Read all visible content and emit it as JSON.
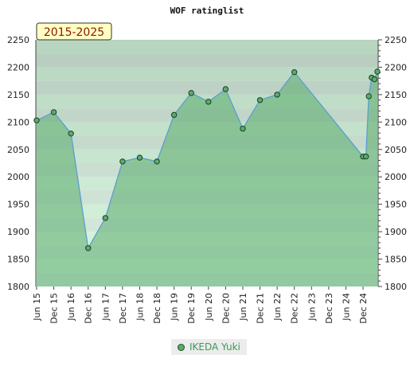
{
  "chart_data": {
    "type": "area",
    "title": "WOF ratinglist",
    "period_label": "2015-2025",
    "x_ticks": [
      "Jun 15",
      "Dec 15",
      "Jun 16",
      "Dec 16",
      "Jun 17",
      "Dec 17",
      "Jun 18",
      "Dec 18",
      "Jun 19",
      "Dec 19",
      "Jun 20",
      "Dec 20",
      "Jun 21",
      "Dec 21",
      "Jun 22",
      "Dec 22",
      "Jun 23",
      "Dec 23",
      "Jun 24",
      "Dec 24"
    ],
    "ylim": [
      1800,
      2250
    ],
    "y_ticks": [
      1800,
      1850,
      1900,
      1950,
      2000,
      2050,
      2100,
      2150,
      2200,
      2250
    ],
    "grid": true,
    "legend_position": "bottom-center",
    "series": [
      {
        "name": "IKEDA Yuki",
        "color": "#5aab6c",
        "points": [
          {
            "x": "2015-06",
            "y": 2103
          },
          {
            "x": "2015-12",
            "y": 2118
          },
          {
            "x": "2016-06",
            "y": 2079
          },
          {
            "x": "2016-12",
            "y": 1870
          },
          {
            "x": "2017-06",
            "y": 1925
          },
          {
            "x": "2017-12",
            "y": 2028
          },
          {
            "x": "2018-06",
            "y": 2035
          },
          {
            "x": "2018-12",
            "y": 2028
          },
          {
            "x": "2019-06",
            "y": 2113
          },
          {
            "x": "2019-12",
            "y": 2153
          },
          {
            "x": "2020-06",
            "y": 2137
          },
          {
            "x": "2020-12",
            "y": 2160
          },
          {
            "x": "2021-06",
            "y": 2088
          },
          {
            "x": "2021-12",
            "y": 2140
          },
          {
            "x": "2022-06",
            "y": 2150
          },
          {
            "x": "2022-12",
            "y": 2191
          },
          {
            "x": "2024-12",
            "y": 2037
          },
          {
            "x": "2025-01",
            "y": 2037
          },
          {
            "x": "2025-02",
            "y": 2147
          },
          {
            "x": "2025-03",
            "y": 2181
          },
          {
            "x": "2025-04",
            "y": 2178
          },
          {
            "x": "2025-05",
            "y": 2192
          }
        ]
      }
    ]
  }
}
